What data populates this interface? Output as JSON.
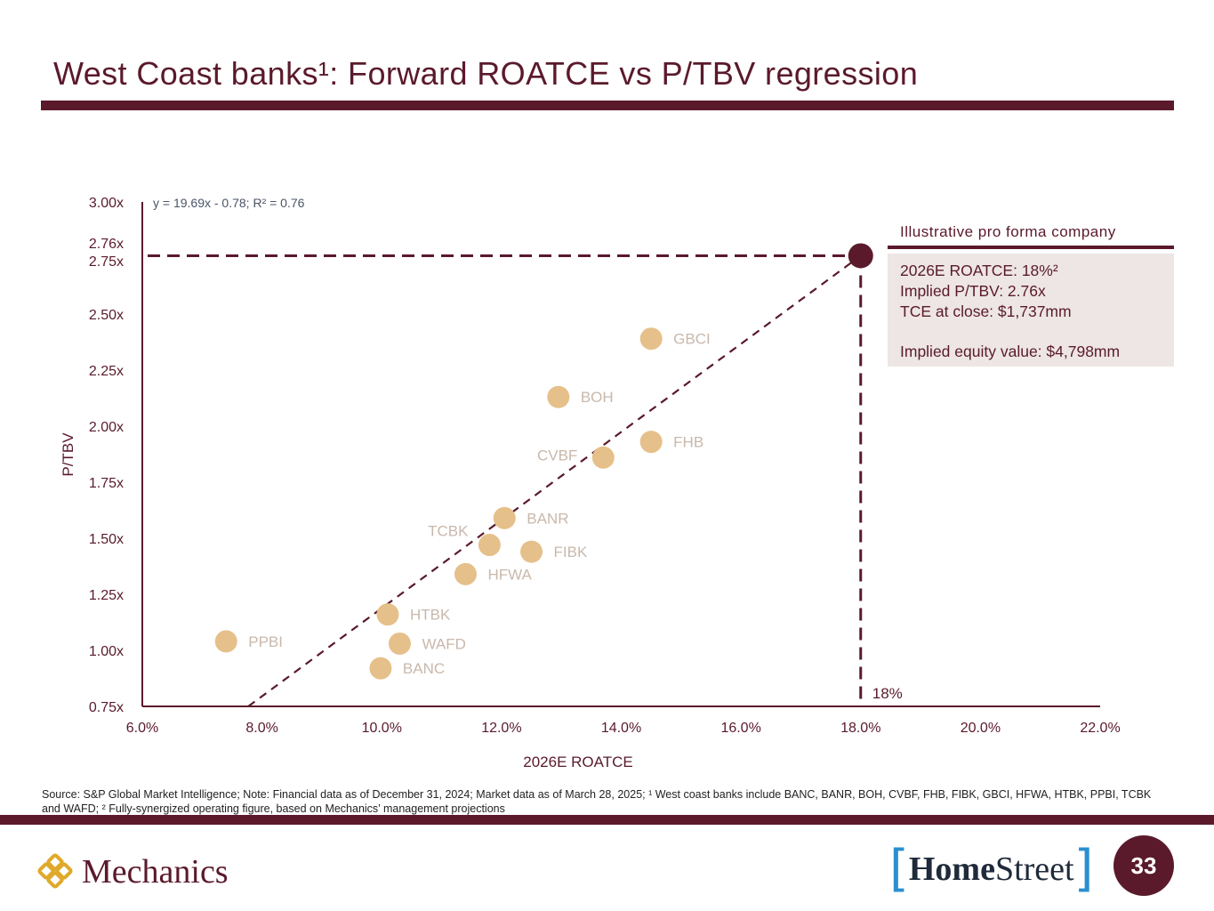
{
  "slide": {
    "title": "West Coast banks¹: Forward ROATCE vs P/TBV regression",
    "page_number": "33",
    "source_note": "Source: S&P Global Market Intelligence; Note: Financial data as of December 31, 2024; Market data as of March 28, 2025; ¹ West coast banks include BANC, BANR, BOH, CVBF, FHB, FIBK, GBCI, HFWA, HTBK, PPBI, TCBK and WAFD; ² Fully-synergized operating figure, based on Mechanics’ management projections"
  },
  "callout": {
    "title": "Illustrative pro forma company",
    "line1": "2026E ROATCE: 18%²",
    "line2": "Implied P/TBV: 2.76x",
    "line3": "TCE at close: $1,737mm",
    "line4": "Implied equity value: $4,798mm"
  },
  "logos": {
    "left_brand": "Mechanics",
    "right_brand_bold": "Home",
    "right_brand_regular": "Street"
  },
  "colors": {
    "brand": "#5a1a2b",
    "points": "#e6c08a",
    "point_labels": "#c9b8ab",
    "callout_bg": "#ede6e4"
  },
  "chart_data": {
    "type": "scatter",
    "xlabel": "2026E ROATCE",
    "ylabel": "P/TBV",
    "xlim": [
      6.0,
      22.0
    ],
    "ylim": [
      0.75,
      3.0
    ],
    "x_ticks": [
      6.0,
      8.0,
      10.0,
      12.0,
      14.0,
      16.0,
      18.0,
      20.0,
      22.0
    ],
    "x_tick_labels": [
      "6.0%",
      "8.0%",
      "10.0%",
      "12.0%",
      "14.0%",
      "16.0%",
      "18.0%",
      "20.0%",
      "22.0%"
    ],
    "y_ticks": [
      0.75,
      1.0,
      1.25,
      1.5,
      1.75,
      2.0,
      2.25,
      2.5,
      2.75,
      2.76,
      3.0
    ],
    "y_tick_labels": [
      "0.75x",
      "1.00x",
      "1.25x",
      "1.50x",
      "1.75x",
      "2.00x",
      "2.25x",
      "2.50x",
      "2.75x",
      "2.76x",
      "3.00x"
    ],
    "equation": "y = 19.69x - 0.78; R² = 0.76",
    "regression": {
      "slope": 19.69,
      "intercept": -0.78
    },
    "points": [
      {
        "label": "GBCI",
        "x": 14.5,
        "y": 2.39,
        "label_side": "right"
      },
      {
        "label": "BOH",
        "x": 12.95,
        "y": 2.13,
        "label_side": "right"
      },
      {
        "label": "FHB",
        "x": 14.5,
        "y": 1.93,
        "label_side": "right"
      },
      {
        "label": "CVBF",
        "x": 13.7,
        "y": 1.86,
        "label_side": "left"
      },
      {
        "label": "BANR",
        "x": 12.05,
        "y": 1.59,
        "label_side": "right"
      },
      {
        "label": "TCBK",
        "x": 11.8,
        "y": 1.47,
        "label_side": "left-up"
      },
      {
        "label": "FIBK",
        "x": 12.5,
        "y": 1.44,
        "label_side": "right"
      },
      {
        "label": "HFWA",
        "x": 11.4,
        "y": 1.34,
        "label_side": "right"
      },
      {
        "label": "HTBK",
        "x": 10.1,
        "y": 1.16,
        "label_side": "right"
      },
      {
        "label": "PPBI",
        "x": 7.4,
        "y": 1.04,
        "label_side": "right"
      },
      {
        "label": "WAFD",
        "x": 10.3,
        "y": 1.03,
        "label_side": "right"
      },
      {
        "label": "BANC",
        "x": 9.98,
        "y": 0.92,
        "label_side": "right"
      }
    ],
    "pro_forma": {
      "x": 18.0,
      "y": 2.76,
      "x_label": "18%"
    }
  }
}
